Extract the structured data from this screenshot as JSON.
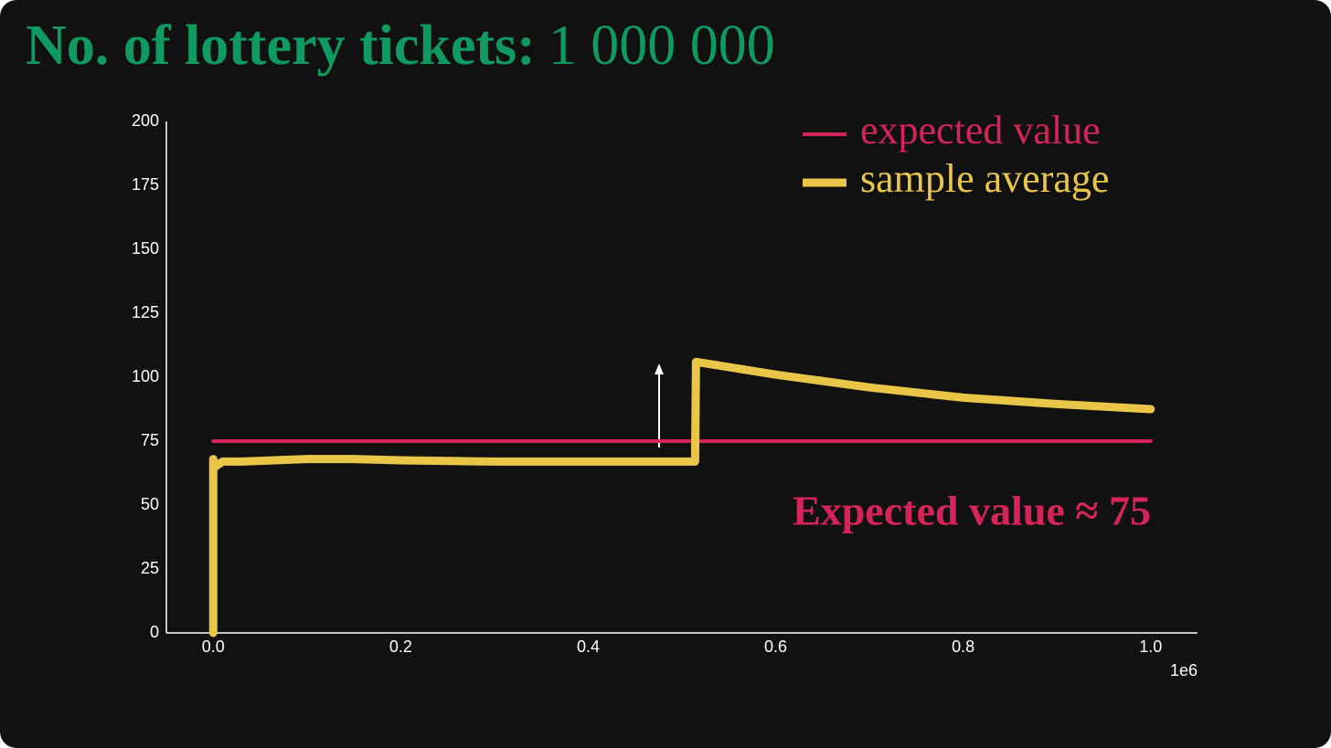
{
  "chart_data": {
    "type": "line",
    "title": "No. of lottery tickets:",
    "title_value": "1 000 000",
    "annotation": "Expected value ≈ 75",
    "x_offset_label": "1e6",
    "x": [
      0,
      0,
      2000,
      10000,
      30000,
      100000,
      150000,
      200000,
      300000,
      400000,
      514000,
      515000,
      600000,
      700000,
      800000,
      900000,
      1000000
    ],
    "series": [
      {
        "name": "expected value",
        "color": "#d5245a",
        "x": [
          0,
          1000000
        ],
        "values": [
          75,
          75
        ]
      },
      {
        "name": "sample average",
        "color": "#e9c548",
        "values": [
          0,
          68,
          65,
          67,
          67,
          68,
          68,
          67.5,
          67,
          67,
          67,
          106,
          101,
          96,
          92,
          89.5,
          87.5
        ]
      }
    ],
    "xlim": [
      -50000,
      1050000
    ],
    "xticks": [
      {
        "value": 0,
        "label": "0.0"
      },
      {
        "value": 200000,
        "label": "0.2"
      },
      {
        "value": 400000,
        "label": "0.4"
      },
      {
        "value": 600000,
        "label": "0.6"
      },
      {
        "value": 800000,
        "label": "0.8"
      },
      {
        "value": 1000000,
        "label": "1.0"
      }
    ],
    "ylim": [
      0,
      200
    ],
    "yticks": [
      0,
      25,
      50,
      75,
      100,
      125,
      150,
      175,
      200
    ],
    "legend": "upper right"
  }
}
